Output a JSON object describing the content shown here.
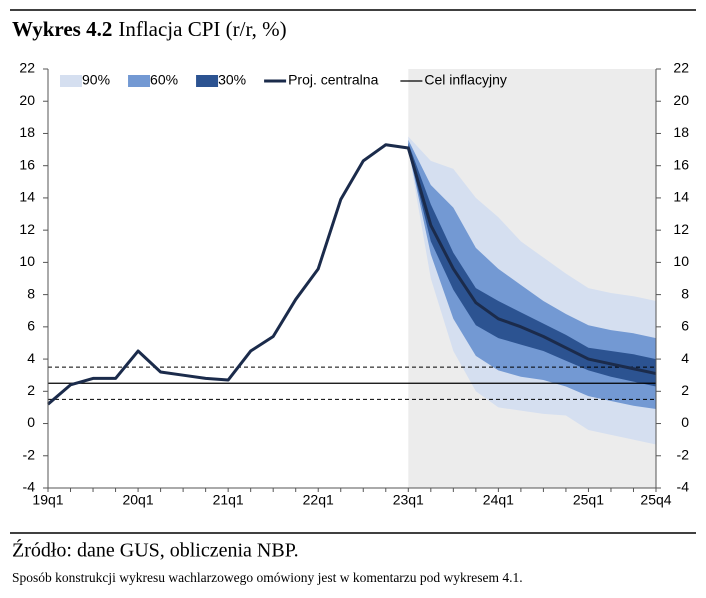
{
  "chart_data": {
    "type": "fan",
    "figure_label": "Wykres 4.2",
    "title": "Inflacja CPI (r/r, %)",
    "categories": [
      "19q1",
      null,
      null,
      null,
      "20q1",
      null,
      null,
      null,
      "21q1",
      null,
      null,
      null,
      "22q1",
      null,
      null,
      null,
      "23q1",
      null,
      null,
      null,
      "24q1",
      null,
      null,
      null,
      "25q1",
      null,
      null,
      "25q4"
    ],
    "ylim": [
      -4,
      22
    ],
    "yticks": [
      -4,
      -2,
      0,
      2,
      4,
      6,
      8,
      10,
      12,
      14,
      16,
      18,
      20,
      22
    ],
    "series": [
      {
        "name": "Proj. centralna",
        "color": "#1b2b4b",
        "values": [
          1.2,
          2.4,
          2.8,
          2.8,
          4.5,
          3.2,
          3.0,
          2.8,
          2.7,
          4.5,
          5.4,
          7.7,
          9.6,
          13.9,
          16.3,
          17.3,
          17.1,
          12.3,
          9.6,
          7.5,
          6.5,
          6.0,
          5.4,
          4.7,
          4.0,
          3.7,
          3.4,
          3.1
        ]
      }
    ],
    "fan": [
      {
        "name": "90%",
        "color": "#d5dff0",
        "lower": [
          null,
          null,
          null,
          null,
          null,
          null,
          null,
          null,
          null,
          null,
          null,
          null,
          null,
          null,
          null,
          null,
          17.0,
          9.0,
          4.5,
          2.0,
          1.0,
          0.8,
          0.6,
          0.5,
          -0.4,
          -0.7,
          -1.0,
          -1.3
        ],
        "upper": [
          null,
          null,
          null,
          null,
          null,
          null,
          null,
          null,
          null,
          null,
          null,
          null,
          null,
          null,
          null,
          null,
          17.8,
          16.3,
          15.8,
          14.0,
          12.8,
          11.3,
          10.3,
          9.3,
          8.4,
          8.1,
          7.9,
          7.6
        ]
      },
      {
        "name": "60%",
        "color": "#7399d3",
        "lower": [
          null,
          null,
          null,
          null,
          null,
          null,
          null,
          null,
          null,
          null,
          null,
          null,
          null,
          null,
          null,
          null,
          17.0,
          10.5,
          6.5,
          4.2,
          3.3,
          2.9,
          2.7,
          2.3,
          1.7,
          1.4,
          1.1,
          0.9
        ],
        "upper": [
          null,
          null,
          null,
          null,
          null,
          null,
          null,
          null,
          null,
          null,
          null,
          null,
          null,
          null,
          null,
          null,
          17.6,
          14.8,
          13.4,
          10.9,
          9.6,
          8.6,
          7.6,
          6.8,
          6.1,
          5.8,
          5.6,
          5.3
        ]
      },
      {
        "name": "30%",
        "color": "#2c5391",
        "lower": [
          null,
          null,
          null,
          null,
          null,
          null,
          null,
          null,
          null,
          null,
          null,
          null,
          null,
          null,
          null,
          null,
          17.0,
          11.3,
          8.3,
          6.1,
          5.3,
          4.9,
          4.5,
          3.9,
          3.3,
          2.9,
          2.6,
          2.3
        ],
        "upper": [
          null,
          null,
          null,
          null,
          null,
          null,
          null,
          null,
          null,
          null,
          null,
          null,
          null,
          null,
          null,
          null,
          17.4,
          13.6,
          10.6,
          8.4,
          7.6,
          6.9,
          6.2,
          5.5,
          4.7,
          4.5,
          4.3,
          4.0
        ]
      }
    ],
    "target": {
      "name": "Cel inflacyjny",
      "color": "#000000",
      "value": 2.5
    },
    "tolerance": [
      1.5,
      3.5
    ],
    "projection_shade": "#ececec",
    "legend": "top-left"
  },
  "footer": {
    "source": "Źródło: dane GUS, obliczenia NBP.",
    "note": "Sposób konstrukcji wykresu wachlarzowego omówiony jest w komentarzu pod wykresem 4.1."
  }
}
